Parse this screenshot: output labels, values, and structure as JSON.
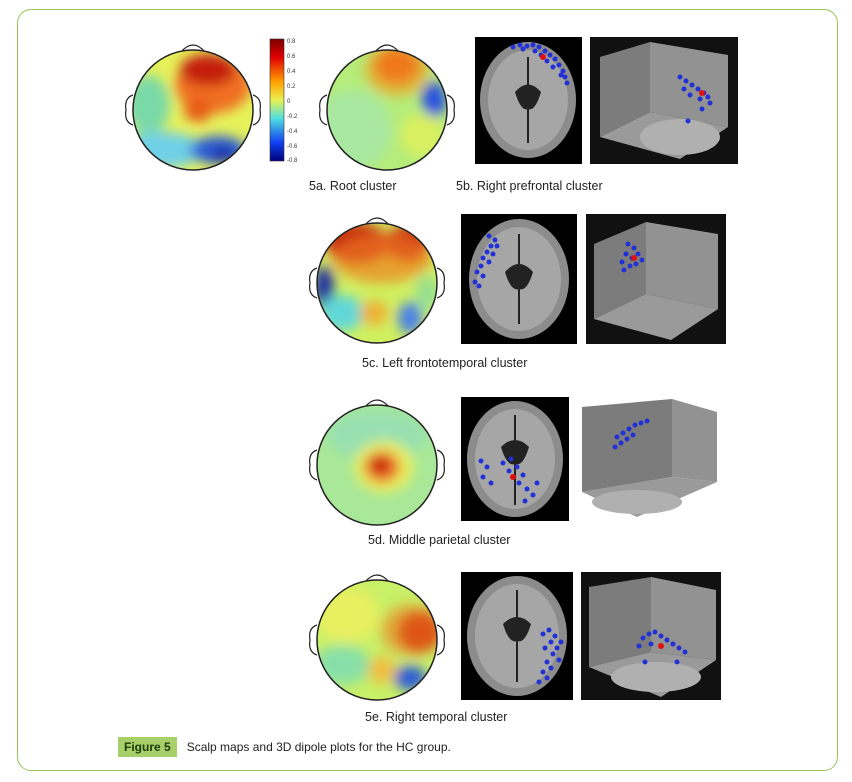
{
  "figure": {
    "tag": "Figure 5",
    "caption": "Scalp maps and 3D dipole plots for the HC group."
  },
  "colorbar": {
    "ticks": [
      "0.8",
      "0.6",
      "0.4",
      "0.2",
      "0",
      "-0.2",
      "-0.4",
      "-0.6",
      "-0.8"
    ]
  },
  "labels": {
    "a": "5a. Root cluster",
    "b": "5b. Right prefrontal cluster",
    "c": "5c. Left frontotemporal cluster",
    "d": "5d. Middle parietal cluster",
    "e": "5e. Right temporal cluster"
  }
}
